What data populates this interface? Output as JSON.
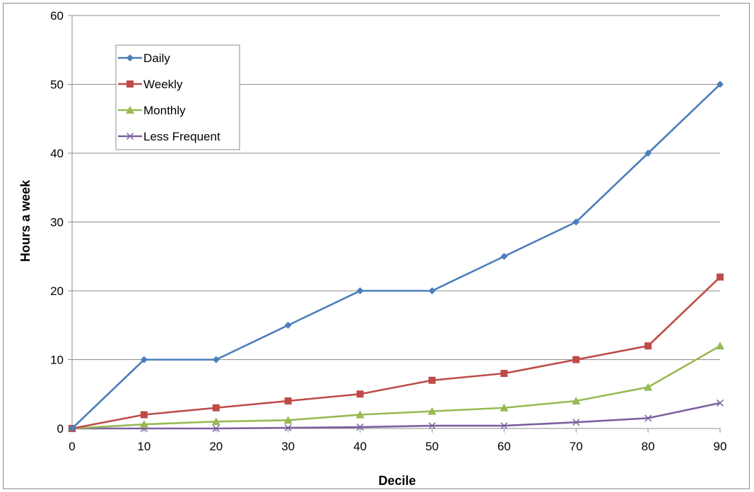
{
  "chart_data": {
    "type": "line",
    "title": "",
    "xlabel": "Decile",
    "ylabel": "Hours a week",
    "x": [
      0,
      10,
      20,
      30,
      40,
      50,
      60,
      70,
      80,
      90
    ],
    "xlim": [
      0,
      90
    ],
    "ylim": [
      0,
      60
    ],
    "yticks": [
      0,
      10,
      20,
      30,
      40,
      50,
      60
    ],
    "xticks": [
      0,
      10,
      20,
      30,
      40,
      50,
      60,
      70,
      80,
      90
    ],
    "grid": "horizontal",
    "legend_position": "top-left",
    "series": [
      {
        "name": "Daily",
        "color": "#4a7ebb",
        "marker": "diamond",
        "values": [
          0,
          10,
          10,
          15,
          20,
          20,
          25,
          30,
          40,
          50
        ]
      },
      {
        "name": "Weekly",
        "color": "#be4b48",
        "marker": "square",
        "values": [
          0,
          2,
          3,
          4,
          5,
          7,
          8,
          10,
          12,
          22
        ]
      },
      {
        "name": "Monthly",
        "color": "#98b954",
        "marker": "triangle",
        "values": [
          0,
          0.6,
          1,
          1.2,
          2,
          2.5,
          3,
          4,
          6,
          12
        ]
      },
      {
        "name": "Less Frequent",
        "color": "#7d60a0",
        "marker": "x",
        "values": [
          0,
          0,
          0,
          0.1,
          0.2,
          0.4,
          0.4,
          0.9,
          1.5,
          3.7
        ]
      }
    ]
  }
}
